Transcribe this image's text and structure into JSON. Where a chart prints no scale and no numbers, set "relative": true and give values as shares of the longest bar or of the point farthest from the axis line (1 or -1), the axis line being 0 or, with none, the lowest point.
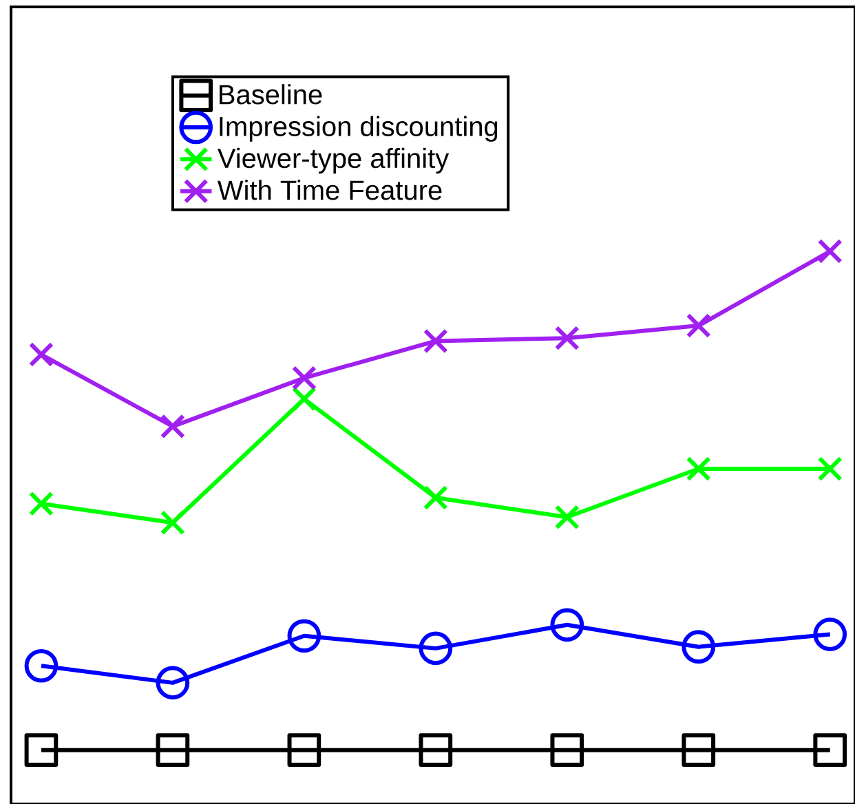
{
  "chart_data": {
    "type": "line",
    "relative": true,
    "categories": [
      null,
      null,
      null,
      null,
      null,
      null,
      null
    ],
    "legend": "top left",
    "series": [
      {
        "name": "Baseline",
        "color": "#000000",
        "marker": "square",
        "values": [
          0,
          0,
          0,
          0,
          0,
          0,
          0
        ]
      },
      {
        "name": "Impression discounting",
        "color": "#0000ff",
        "marker": "circle",
        "values": [
          0.169,
          0.135,
          0.229,
          0.204,
          0.251,
          0.207,
          0.232
        ]
      },
      {
        "name": "Viewer-type affinity",
        "color": "#00ff00",
        "marker": "cross",
        "values": [
          0.494,
          0.456,
          0.704,
          0.506,
          0.467,
          0.564,
          0.564
        ]
      },
      {
        "name": "With Time Feature",
        "color": "#a020f0",
        "marker": "cross",
        "values": [
          0.793,
          0.649,
          0.746,
          0.82,
          0.826,
          0.851,
          1
        ]
      }
    ]
  }
}
